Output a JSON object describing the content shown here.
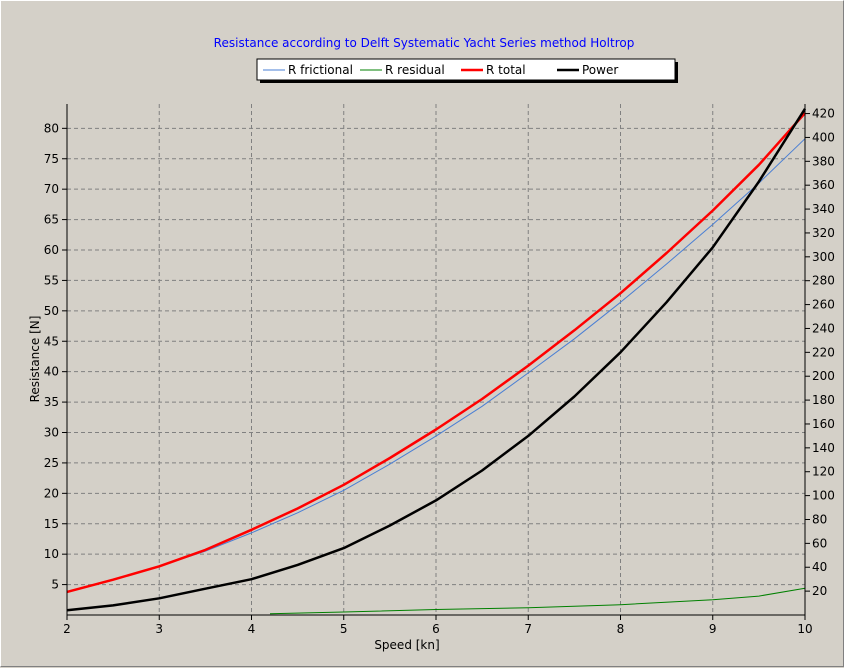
{
  "chart_data": {
    "type": "line",
    "title": "Resistance according to Delft Systematic Yacht Series method Holtrop",
    "xlabel": "Speed [kn]",
    "ylabel": "Resistance [N]",
    "y2label": "",
    "xlim": [
      2,
      10
    ],
    "ylim": [
      0,
      84
    ],
    "y2lim": [
      0,
      428
    ],
    "grid": true,
    "legend_position": "top",
    "xticks": [
      2,
      3,
      4,
      5,
      6,
      7,
      8,
      9,
      10
    ],
    "yticks": [
      5,
      10,
      15,
      20,
      25,
      30,
      35,
      40,
      45,
      50,
      55,
      60,
      65,
      70,
      75,
      80
    ],
    "y2ticks": [
      20,
      40,
      60,
      80,
      100,
      120,
      140,
      160,
      180,
      200,
      220,
      240,
      260,
      280,
      300,
      320,
      340,
      360,
      380,
      400,
      420
    ],
    "series": [
      {
        "name": "R frictional",
        "axis": "left",
        "color": "#4a7fd4",
        "x": [
          2,
          2.5,
          3,
          3.5,
          4,
          4.5,
          5,
          5.5,
          6,
          6.5,
          7,
          7.5,
          8,
          8.5,
          9,
          9.5,
          10
        ],
        "y": [
          3.8,
          5.8,
          8.0,
          10.5,
          13.5,
          16.8,
          20.5,
          24.8,
          29.4,
          34.3,
          39.8,
          45.4,
          51.4,
          57.7,
          64.2,
          71.0,
          78.3
        ]
      },
      {
        "name": "R residual",
        "axis": "left",
        "color": "#008000",
        "x": [
          4.2,
          5,
          6,
          7,
          8,
          9,
          9.5,
          10
        ],
        "y": [
          0.2,
          0.5,
          0.9,
          1.2,
          1.7,
          2.5,
          3.1,
          4.4
        ]
      },
      {
        "name": "R total",
        "axis": "left",
        "color": "#ff0000",
        "x": [
          2,
          2.5,
          3,
          3.5,
          4,
          4.5,
          5,
          5.5,
          6,
          6.5,
          7,
          7.5,
          8,
          8.5,
          9,
          9.5,
          10
        ],
        "y": [
          3.8,
          5.8,
          8.0,
          10.7,
          14.0,
          17.5,
          21.4,
          25.8,
          30.5,
          35.5,
          41.0,
          46.8,
          52.9,
          59.5,
          66.5,
          74.0,
          82.5
        ]
      },
      {
        "name": "Power",
        "axis": "right",
        "color": "#000000",
        "x": [
          2,
          2.5,
          3,
          3.5,
          4,
          4.5,
          5,
          5.5,
          6,
          6.5,
          7,
          7.5,
          8,
          8.5,
          9,
          9.5,
          10
        ],
        "y": [
          4,
          8,
          14,
          22,
          30,
          42,
          56,
          75,
          96,
          121,
          150,
          183,
          220,
          262,
          308,
          363,
          424
        ]
      }
    ]
  }
}
